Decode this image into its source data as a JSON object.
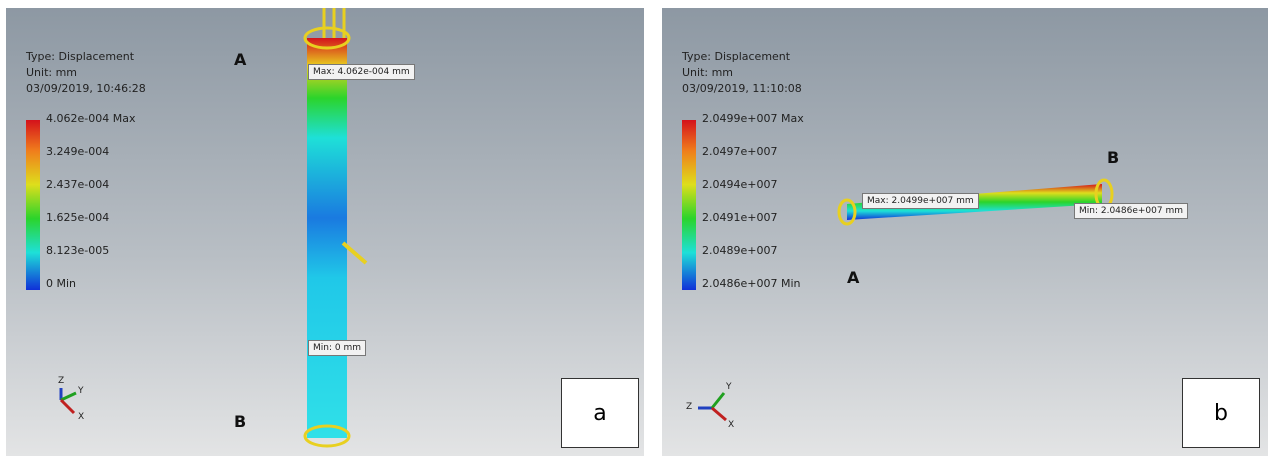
{
  "panels": [
    {
      "label": "a",
      "type_line": "Type: Displacement",
      "unit_line": "Unit: mm",
      "timestamp": "03/09/2019, 10:46:28",
      "legend": [
        "4.062e-004 Max",
        "3.249e-004",
        "2.437e-004",
        "1.625e-004",
        "8.123e-005",
        "0 Min"
      ],
      "callouts": [
        "Max: 4.062e-004 mm",
        "Min: 0 mm"
      ],
      "points": [
        "A",
        "B"
      ],
      "triad": [
        "Z",
        "Y",
        "X"
      ]
    },
    {
      "label": "b",
      "type_line": "Type: Displacement",
      "unit_line": "Unit: mm",
      "timestamp": "03/09/2019, 11:10:08",
      "legend": [
        "2.0499e+007 Max",
        "2.0497e+007",
        "2.0494e+007",
        "2.0491e+007",
        "2.0489e+007",
        "2.0486e+007 Min"
      ],
      "callouts": [
        "Max: 2.0499e+007 mm",
        "Min: 2.0486e+007 mm"
      ],
      "points": [
        "A",
        "B"
      ],
      "triad": [
        "Z",
        "Y",
        "X"
      ]
    }
  ]
}
